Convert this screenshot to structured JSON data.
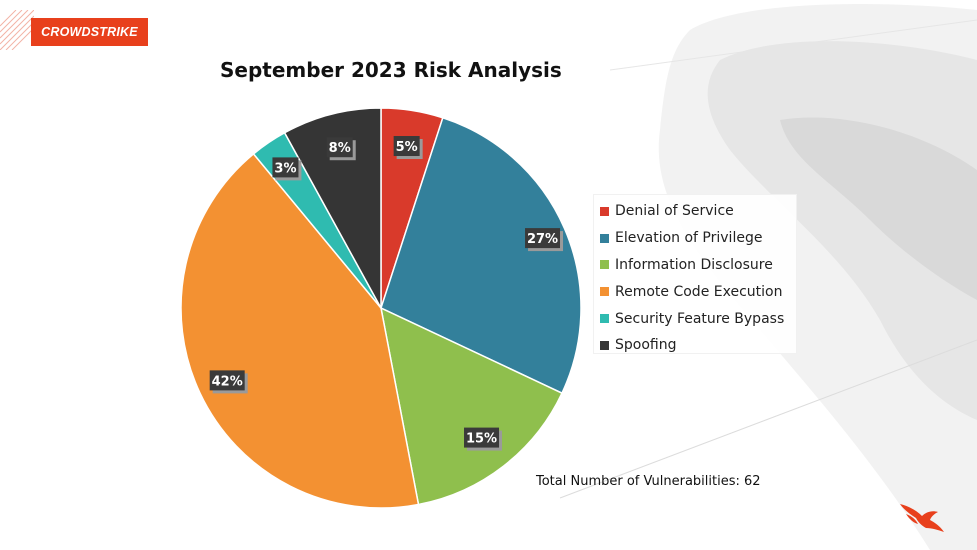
{
  "brand": {
    "logo_text": "CROWDSTRIKE",
    "logo_color": "#e8401c"
  },
  "title": "September 2023 Risk Analysis",
  "total_text": "Total Number of Vulnerabilities: 62",
  "chart_data": {
    "type": "pie",
    "title": "September 2023 Risk Analysis",
    "legend_position": "right",
    "categories": [
      "Denial of Service",
      "Elevation of Privilege",
      "Information Disclosure",
      "Remote Code Execution",
      "Security Feature Bypass",
      "Spoofing"
    ],
    "values": [
      5,
      27,
      15,
      42,
      3,
      8
    ],
    "labels": [
      "5%",
      "27%",
      "15%",
      "42%",
      "3%",
      "8%"
    ],
    "colors": [
      "#d93a2b",
      "#33809b",
      "#8fbf4d",
      "#f39132",
      "#2fbbb0",
      "#353535"
    ]
  }
}
